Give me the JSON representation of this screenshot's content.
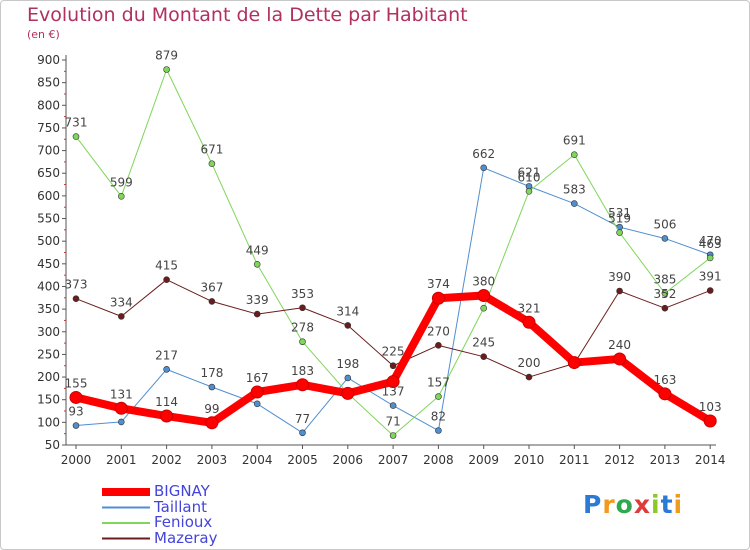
{
  "title": "Evolution du Montant de la Dette par Habitant",
  "subtitle": "(en €)",
  "logo": {
    "text": "Proxiti",
    "colors": [
      "#2b7bd6",
      "#f29a1e",
      "#2fa84f",
      "#e03b3b",
      "#8ac926",
      "#2b7bd6",
      "#f29a1e"
    ]
  },
  "chart_data": {
    "type": "line",
    "title": "Evolution du Montant de la Dette par Habitant",
    "subtitle": "(en €)",
    "xlabel": "",
    "ylabel": "",
    "x": [
      "2000",
      "2001",
      "2002",
      "2003",
      "2004",
      "2005",
      "2006",
      "2007",
      "2008",
      "2009",
      "2010",
      "2011",
      "2012",
      "2013",
      "2014"
    ],
    "ylim": [
      50,
      900
    ],
    "yticks": [
      50,
      100,
      150,
      200,
      250,
      300,
      350,
      400,
      450,
      500,
      550,
      600,
      650,
      700,
      750,
      800,
      850,
      900
    ],
    "grid": false,
    "legend_position": "bottom-left",
    "series": [
      {
        "name": "BIGNAY",
        "color": "#ff0000",
        "width": 8,
        "values": [
          155,
          131,
          114,
          99,
          167,
          183,
          164,
          190,
          374,
          380,
          321,
          232,
          240,
          163,
          103
        ],
        "labels": [
          "155",
          "131",
          "114",
          "99",
          "167",
          "183",
          "",
          "",
          "374",
          "380",
          "321",
          "",
          "240",
          "163",
          "103"
        ]
      },
      {
        "name": "Taillant",
        "color": "#4f8fd0",
        "width": 1,
        "values": [
          93,
          101,
          217,
          178,
          141,
          77,
          198,
          137,
          82,
          662,
          621,
          583,
          531,
          506,
          470
        ],
        "labels": [
          "93",
          "",
          "217",
          "178",
          "",
          "77",
          "198",
          "137",
          "82",
          "662",
          "621",
          "583",
          "531",
          "506",
          "470"
        ]
      },
      {
        "name": "Fenioux",
        "color": "#7fd65a",
        "width": 1,
        "values": [
          731,
          599,
          879,
          671,
          449,
          278,
          164,
          71,
          157,
          352,
          610,
          691,
          519,
          385,
          463
        ],
        "labels": [
          "731",
          "599",
          "879",
          "671",
          "449",
          "278",
          "",
          "71",
          "157",
          "",
          "610",
          "691",
          "519",
          "385",
          "463"
        ]
      },
      {
        "name": "Mazeray",
        "color": "#6b1c1c",
        "width": 1,
        "values": [
          373,
          334,
          415,
          367,
          339,
          353,
          314,
          225,
          270,
          245,
          200,
          230,
          390,
          352,
          391
        ],
        "labels": [
          "373",
          "334",
          "415",
          "367",
          "339",
          "353",
          "314",
          "225",
          "270",
          "245",
          "200",
          "",
          "390",
          "352",
          "391"
        ]
      }
    ]
  }
}
